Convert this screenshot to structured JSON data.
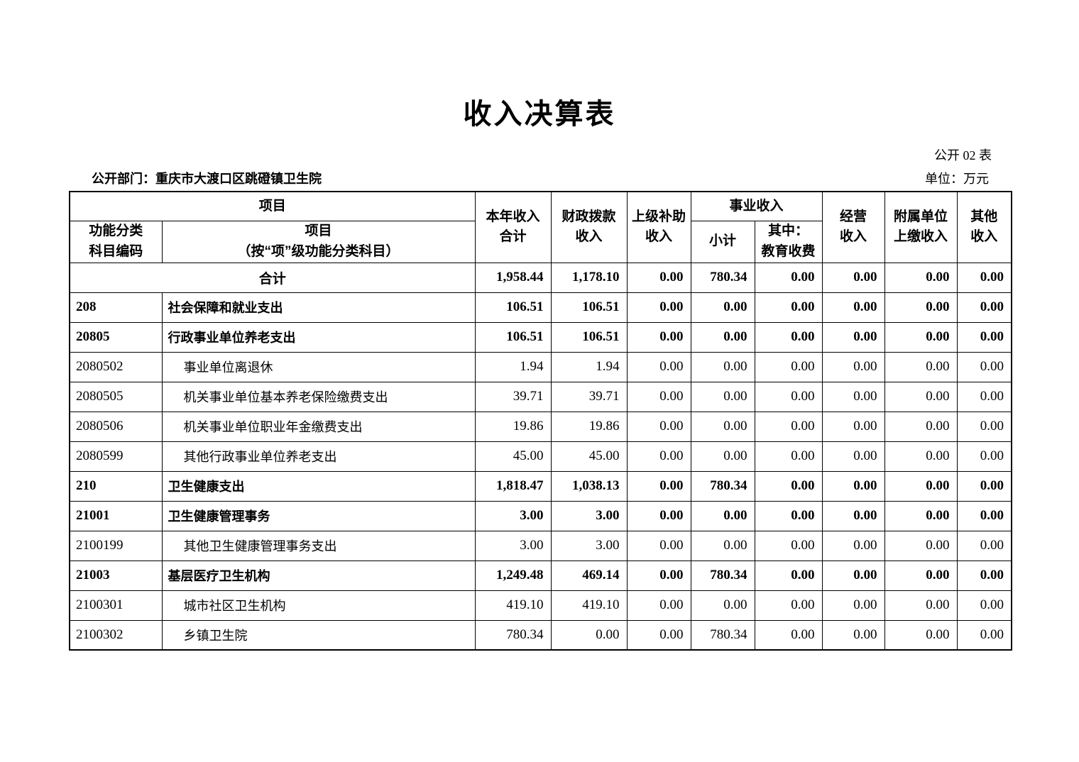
{
  "doc": {
    "title": "收入决算表",
    "table_no": "公开 02 表",
    "department_label": "公开部门：重庆市大渡口区跳磴镇卫生院",
    "unit_label": "单位：万元"
  },
  "table": {
    "header": {
      "project_group": "项目",
      "code_col": "功能分类\n科目编码",
      "name_col": "项目\n（按“项”级功能分类科目）",
      "total_income": "本年收入\n合计",
      "fiscal_income": "财政拨款\n收入",
      "superior_subsidy": "上级补助\n收入",
      "business_group": "事业收入",
      "business_subtotal": "小计",
      "education_fee": "其中：\n教育收费",
      "operating_income": "经营\n收入",
      "affiliated_income": "附属单位\n上缴收入",
      "other_income": "其他\n收入"
    },
    "rows": [
      {
        "code": "",
        "name": "合计",
        "style": "total",
        "values": [
          "1,958.44",
          "1,178.10",
          "0.00",
          "780.34",
          "0.00",
          "0.00",
          "0.00",
          "0.00"
        ]
      },
      {
        "code": "208",
        "name": "社会保障和就业支出",
        "style": "bold",
        "values": [
          "106.51",
          "106.51",
          "0.00",
          "0.00",
          "0.00",
          "0.00",
          "0.00",
          "0.00"
        ]
      },
      {
        "code": "20805",
        "name": "行政事业单位养老支出",
        "style": "bold",
        "values": [
          "106.51",
          "106.51",
          "0.00",
          "0.00",
          "0.00",
          "0.00",
          "0.00",
          "0.00"
        ]
      },
      {
        "code": "2080502",
        "name": "事业单位离退休",
        "style": "detail",
        "values": [
          "1.94",
          "1.94",
          "0.00",
          "0.00",
          "0.00",
          "0.00",
          "0.00",
          "0.00"
        ]
      },
      {
        "code": "2080505",
        "name": "机关事业单位基本养老保险缴费支出",
        "style": "detail",
        "values": [
          "39.71",
          "39.71",
          "0.00",
          "0.00",
          "0.00",
          "0.00",
          "0.00",
          "0.00"
        ]
      },
      {
        "code": "2080506",
        "name": "机关事业单位职业年金缴费支出",
        "style": "detail",
        "values": [
          "19.86",
          "19.86",
          "0.00",
          "0.00",
          "0.00",
          "0.00",
          "0.00",
          "0.00"
        ]
      },
      {
        "code": "2080599",
        "name": "其他行政事业单位养老支出",
        "style": "detail",
        "values": [
          "45.00",
          "45.00",
          "0.00",
          "0.00",
          "0.00",
          "0.00",
          "0.00",
          "0.00"
        ]
      },
      {
        "code": "210",
        "name": "卫生健康支出",
        "style": "bold",
        "values": [
          "1,818.47",
          "1,038.13",
          "0.00",
          "780.34",
          "0.00",
          "0.00",
          "0.00",
          "0.00"
        ]
      },
      {
        "code": "21001",
        "name": "卫生健康管理事务",
        "style": "bold",
        "values": [
          "3.00",
          "3.00",
          "0.00",
          "0.00",
          "0.00",
          "0.00",
          "0.00",
          "0.00"
        ]
      },
      {
        "code": "2100199",
        "name": "其他卫生健康管理事务支出",
        "style": "detail",
        "values": [
          "3.00",
          "3.00",
          "0.00",
          "0.00",
          "0.00",
          "0.00",
          "0.00",
          "0.00"
        ]
      },
      {
        "code": "21003",
        "name": "基层医疗卫生机构",
        "style": "bold",
        "values": [
          "1,249.48",
          "469.14",
          "0.00",
          "780.34",
          "0.00",
          "0.00",
          "0.00",
          "0.00"
        ]
      },
      {
        "code": "2100301",
        "name": "城市社区卫生机构",
        "style": "detail",
        "values": [
          "419.10",
          "419.10",
          "0.00",
          "0.00",
          "0.00",
          "0.00",
          "0.00",
          "0.00"
        ]
      },
      {
        "code": "2100302",
        "name": "乡镇卫生院",
        "style": "detail",
        "values": [
          "780.34",
          "0.00",
          "0.00",
          "780.34",
          "0.00",
          "0.00",
          "0.00",
          "0.00"
        ]
      }
    ]
  }
}
